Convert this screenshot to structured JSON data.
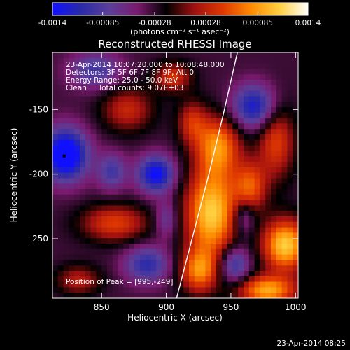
{
  "colorbar": {
    "ticks": [
      "-0.0014",
      "-0.00085",
      "-0.00028",
      "0.00028",
      "0.00085",
      "0.0014"
    ],
    "tick_values": [
      -0.0014,
      -0.00085,
      -0.00028,
      0.00028,
      0.00085,
      0.0014
    ],
    "range": [
      -0.0014,
      0.0014
    ],
    "units_label": "(photons cm⁻² s⁻¹ asec⁻²)",
    "colors": [
      "#1010ff",
      "#2a2aa8",
      "#5b3f9a",
      "#7a1a6e",
      "#000000",
      "#a01010",
      "#e03800",
      "#ff8c00",
      "#ffd040",
      "#ffffff"
    ]
  },
  "chart_data": {
    "type": "heatmap",
    "title": "Reconstructed RHESSI Image",
    "xlabel": "Heliocentric X (arcsec)",
    "ylabel": "Heliocentric Y (arcsec)",
    "xlim": [
      812,
      1002
    ],
    "ylim": [
      -296,
      -106
    ],
    "x_ticks": [
      850,
      900,
      950,
      1000
    ],
    "y_ticks": [
      -150,
      -200,
      -250
    ],
    "annotations": [
      "23-Apr-2014 10:07:20.000 to 10:08:48.000",
      "Detectors: 3F 5F 6F 7F 8F 9F, Att 0",
      "Energy Range: 25.0 - 50.0 keV",
      "Clean     Total counts: 9.07E+03"
    ],
    "peak_label": "Position of Peak = [995,-249]",
    "peak": [
      995,
      -249
    ],
    "limb_points": [
      [
        908,
        -296
      ],
      [
        920,
        -250
      ],
      [
        933,
        -200
      ],
      [
        945,
        -150
      ],
      [
        955,
        -106
      ]
    ],
    "marker": [
      821,
      -186
    ],
    "blobs": [
      {
        "x": 935,
        "y": -230,
        "sx": 14,
        "sy": 24,
        "v": 1.0
      },
      {
        "x": 940,
        "y": -178,
        "sx": 12,
        "sy": 16,
        "v": 0.75
      },
      {
        "x": 925,
        "y": -275,
        "sx": 10,
        "sy": 12,
        "v": 0.7
      },
      {
        "x": 965,
        "y": -210,
        "sx": 9,
        "sy": 14,
        "v": 0.6
      },
      {
        "x": 992,
        "y": -255,
        "sx": 12,
        "sy": 14,
        "v": 1.0
      },
      {
        "x": 978,
        "y": -290,
        "sx": 16,
        "sy": 8,
        "v": 0.85
      },
      {
        "x": 985,
        "y": -175,
        "sx": 10,
        "sy": 20,
        "v": 0.55
      },
      {
        "x": 870,
        "y": -150,
        "sx": 14,
        "sy": 12,
        "v": 0.45
      },
      {
        "x": 860,
        "y": -238,
        "sx": 18,
        "sy": 10,
        "v": 0.55
      },
      {
        "x": 832,
        "y": -282,
        "sx": 12,
        "sy": 8,
        "v": 0.4
      },
      {
        "x": 905,
        "y": -125,
        "sx": 10,
        "sy": 8,
        "v": 0.5
      },
      {
        "x": 920,
        "y": -160,
        "sx": 8,
        "sy": 12,
        "v": 0.45
      },
      {
        "x": 822,
        "y": -185,
        "sx": 12,
        "sy": 14,
        "v": -1.0
      },
      {
        "x": 892,
        "y": -200,
        "sx": 10,
        "sy": 10,
        "v": -0.8
      },
      {
        "x": 968,
        "y": -148,
        "sx": 12,
        "sy": 12,
        "v": -0.7
      },
      {
        "x": 885,
        "y": -270,
        "sx": 12,
        "sy": 10,
        "v": -0.55
      },
      {
        "x": 953,
        "y": -270,
        "sx": 8,
        "sy": 10,
        "v": -0.55
      },
      {
        "x": 858,
        "y": -198,
        "sx": 8,
        "sy": 10,
        "v": -0.45
      },
      {
        "x": 960,
        "y": -233,
        "sx": 6,
        "sy": 10,
        "v": -0.4
      },
      {
        "x": 845,
        "y": -120,
        "sx": 14,
        "sy": 10,
        "v": -0.45
      },
      {
        "x": 900,
        "y": -235,
        "sx": 6,
        "sy": 10,
        "v": -0.35
      }
    ]
  },
  "timestamp": "23-Apr-2014 08:25"
}
